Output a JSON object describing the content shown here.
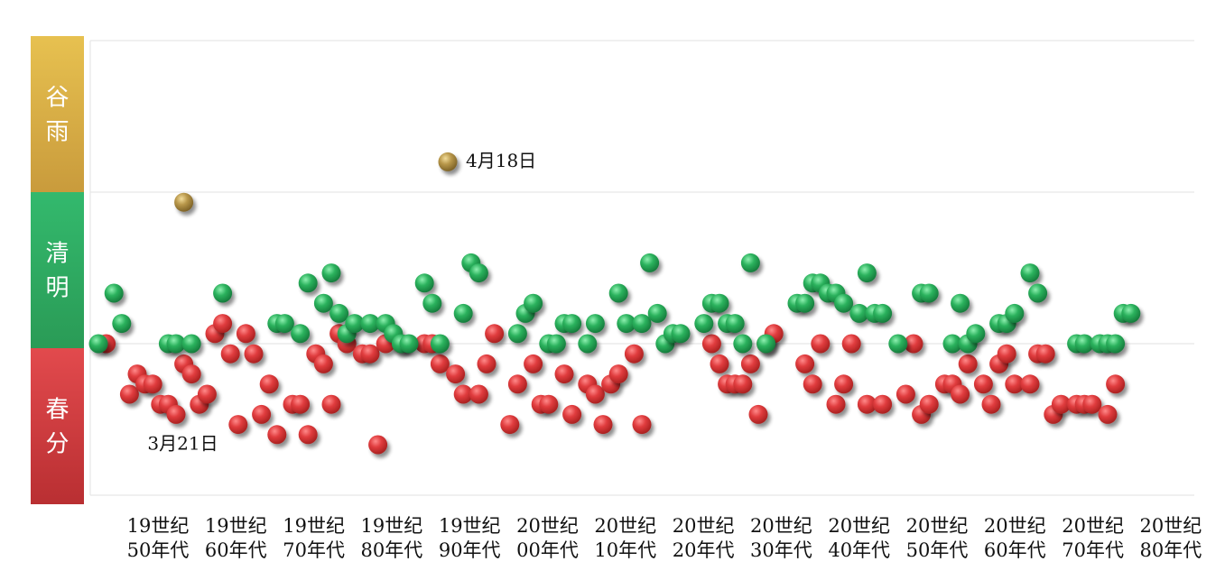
{
  "chart_data": {
    "type": "scatter",
    "title": "",
    "xlabel": "",
    "ylabel": "",
    "y_categories": [
      {
        "label": "谷雨",
        "color_top": "#e6c04e",
        "color_bottom": "#c79a3a"
      },
      {
        "label": "清明",
        "color_top": "#2fb56a",
        "color_bottom": "#2a9a55"
      },
      {
        "label": "春分",
        "color_top": "#e0494c",
        "color_bottom": "#bb3033"
      }
    ],
    "x_tick_labels": [
      [
        "19世纪",
        "50年代"
      ],
      [
        "19世纪",
        "60年代"
      ],
      [
        "19世纪",
        "70年代"
      ],
      [
        "19世纪",
        "80年代"
      ],
      [
        "19世纪",
        "90年代"
      ],
      [
        "20世纪",
        "00年代"
      ],
      [
        "20世纪",
        "10年代"
      ],
      [
        "20世纪",
        "20年代"
      ],
      [
        "20世纪",
        "30年代"
      ],
      [
        "20世纪",
        "40年代"
      ],
      [
        "20世纪",
        "50年代"
      ],
      [
        "20世纪",
        "60年代"
      ],
      [
        "20世纪",
        "70年代"
      ],
      [
        "20世纪",
        "80年代"
      ]
    ],
    "x_unit": "year",
    "xlim": [
      1850,
      1990
    ],
    "y_unit": "day of year (March 21 = 80)",
    "ylim": [
      80,
      110
    ],
    "grid": true,
    "annotations": [
      {
        "text": "4月18日",
        "x": 1895,
        "y": 108
      },
      {
        "text": "3月21日",
        "x": 1854,
        "y": 80
      }
    ],
    "colors": {
      "春分": "#d83b3d",
      "清明": "#27a35a",
      "谷雨": "#b59443"
    },
    "series": [
      {
        "name": "春分",
        "x": [
          1851,
          1854,
          1855,
          1856,
          1857,
          1858,
          1859,
          1860,
          1861,
          1862,
          1863,
          1864,
          1865,
          1866,
          1867,
          1868,
          1869,
          1870,
          1871,
          1872,
          1873,
          1875,
          1876,
          1877,
          1878,
          1879,
          1880,
          1881,
          1882,
          1884,
          1885,
          1886,
          1887,
          1889,
          1892,
          1893,
          1894,
          1896,
          1897,
          1899,
          1900,
          1901,
          1903,
          1904,
          1906,
          1907,
          1908,
          1910,
          1911,
          1913,
          1914,
          1915,
          1916,
          1917,
          1919,
          1920,
          1929,
          1930,
          1931,
          1932,
          1933,
          1934,
          1935,
          1936,
          1937,
          1941,
          1942,
          1943,
          1945,
          1946,
          1947,
          1949,
          1951,
          1954,
          1955,
          1956,
          1957,
          1959,
          1960,
          1961,
          1962,
          1964,
          1965,
          1966,
          1967,
          1968,
          1970,
          1971,
          1972,
          1973,
          1974,
          1976,
          1977,
          1978,
          1980,
          1981
        ],
        "y": [
          90,
          85,
          87,
          86,
          86,
          84,
          84,
          83,
          88,
          87,
          84,
          85,
          91,
          92,
          89,
          82,
          91,
          89,
          83,
          86,
          81,
          84,
          84,
          81,
          89,
          88,
          84,
          91,
          90,
          89,
          89,
          80,
          90,
          90,
          90,
          90,
          88,
          87,
          85,
          85,
          88,
          91,
          82,
          86,
          88,
          84,
          84,
          87,
          83,
          86,
          85,
          82,
          86,
          87,
          89,
          82,
          90,
          88,
          86,
          86,
          86,
          88,
          83,
          90,
          91,
          88,
          86,
          90,
          84,
          86,
          90,
          84,
          84,
          85,
          90,
          83,
          84,
          86,
          86,
          85,
          88,
          86,
          84,
          88,
          89,
          86,
          86,
          89,
          89,
          83,
          84,
          84,
          84,
          84,
          83,
          86
        ]
      },
      {
        "name": "清明",
        "x": [
          1850,
          1852,
          1853,
          1859,
          1860,
          1862,
          1866,
          1873,
          1874,
          1876,
          1877,
          1879,
          1880,
          1881,
          1882,
          1883,
          1885,
          1887,
          1888,
          1889,
          1890,
          1892,
          1893,
          1894,
          1897,
          1898,
          1899,
          1904,
          1905,
          1906,
          1908,
          1909,
          1910,
          1911,
          1913,
          1914,
          1917,
          1918,
          1920,
          1921,
          1922,
          1923,
          1924,
          1925,
          1928,
          1929,
          1930,
          1931,
          1932,
          1933,
          1934,
          1936,
          1940,
          1941,
          1942,
          1943,
          1944,
          1945,
          1946,
          1948,
          1949,
          1950,
          1951,
          1953,
          1956,
          1957,
          1960,
          1961,
          1962,
          1963,
          1966,
          1967,
          1968,
          1970,
          1971,
          1976,
          1977,
          1979,
          1980,
          1981,
          1982,
          1983
        ],
        "y": [
          90,
          95,
          92,
          90,
          90,
          90,
          95,
          92,
          92,
          91,
          96,
          94,
          97,
          93,
          91,
          92,
          92,
          92,
          91,
          90,
          90,
          96,
          94,
          90,
          93,
          98,
          97,
          91,
          93,
          94,
          90,
          90,
          92,
          92,
          90,
          92,
          95,
          92,
          92,
          98,
          93,
          90,
          91,
          91,
          92,
          94,
          94,
          92,
          92,
          90,
          98,
          90,
          94,
          94,
          96,
          96,
          95,
          95,
          94,
          93,
          97,
          93,
          93,
          90,
          95,
          95,
          90,
          94,
          90,
          91,
          92,
          92,
          93,
          97,
          95,
          90,
          90,
          90,
          90,
          90,
          93,
          93
        ]
      },
      {
        "name": "谷雨",
        "x": [
          1861,
          1895
        ],
        "y": [
          104,
          108
        ]
      }
    ]
  }
}
